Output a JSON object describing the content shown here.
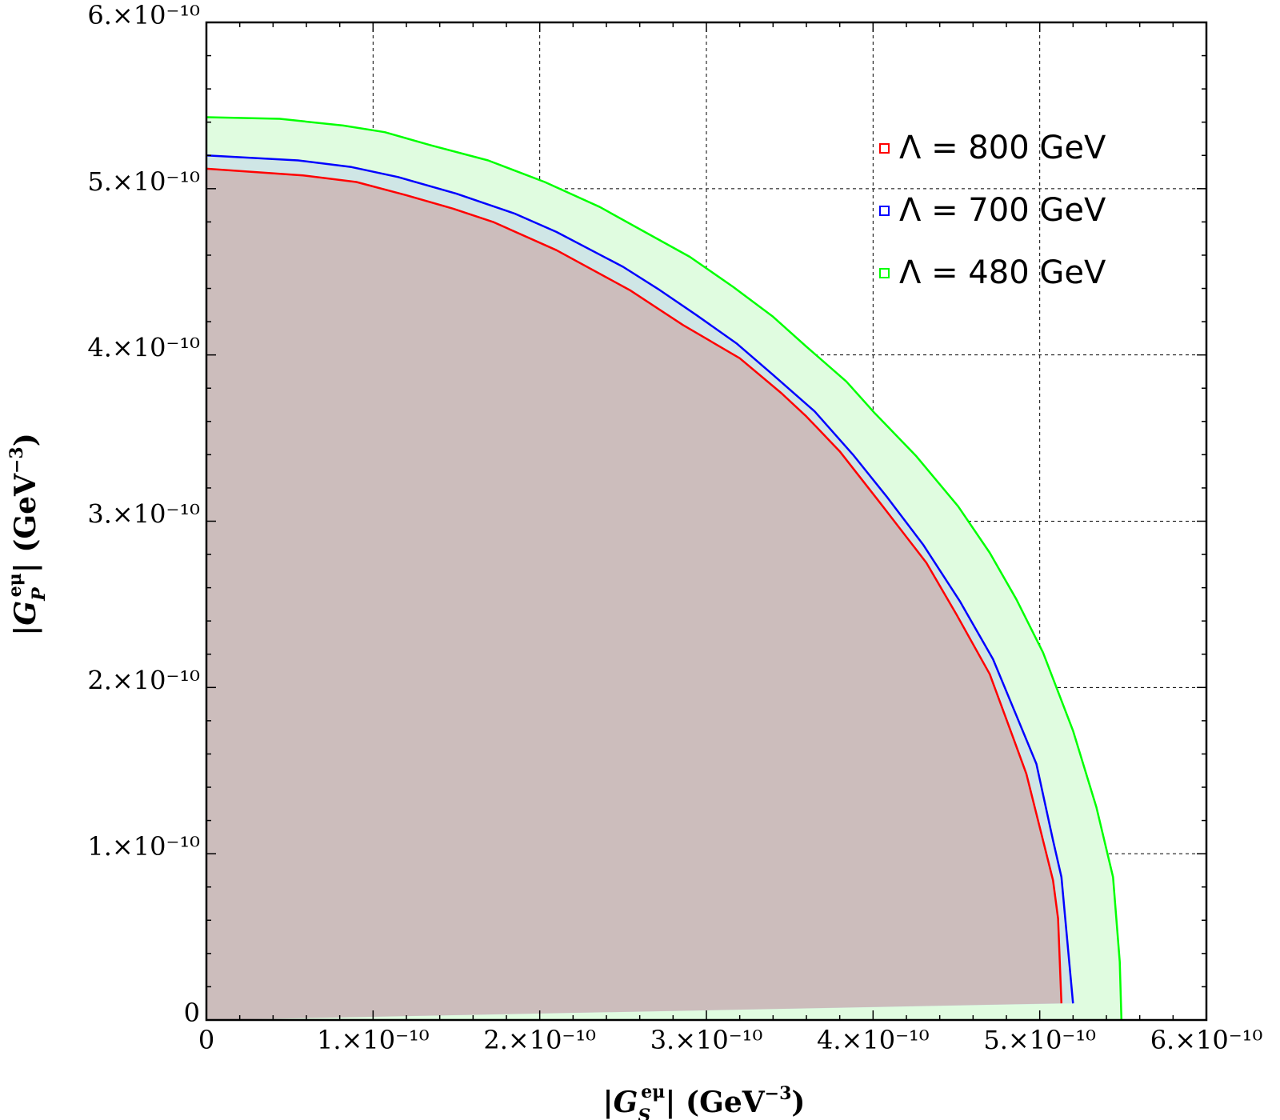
{
  "chart_data": {
    "type": "area",
    "title": "",
    "xlabel": "|G_S^{eμ}| (GeV^{-3})",
    "ylabel": "|G_P^{eμ}| (GeV^{-3})",
    "xlim": [
      0,
      6e-10
    ],
    "ylim": [
      0,
      6e-10
    ],
    "grid": true,
    "legend_position": "top-right",
    "x_ticks": [
      {
        "value": 0,
        "label": "0"
      },
      {
        "value": 1e-10,
        "label": "1.×10⁻¹⁰"
      },
      {
        "value": 2e-10,
        "label": "2.×10⁻¹⁰"
      },
      {
        "value": 3e-10,
        "label": "3.×10⁻¹⁰"
      },
      {
        "value": 4e-10,
        "label": "4.×10⁻¹⁰"
      },
      {
        "value": 5e-10,
        "label": "5.×10⁻¹⁰"
      },
      {
        "value": 6e-10,
        "label": "6.×10⁻¹⁰"
      }
    ],
    "y_ticks": [
      {
        "value": 0,
        "label": "0"
      },
      {
        "value": 1e-10,
        "label": "1.×10⁻¹⁰"
      },
      {
        "value": 2e-10,
        "label": "2.×10⁻¹⁰"
      },
      {
        "value": 3e-10,
        "label": "3.×10⁻¹⁰"
      },
      {
        "value": 4e-10,
        "label": "4.×10⁻¹⁰"
      },
      {
        "value": 5e-10,
        "label": "5.×10⁻¹⁰"
      },
      {
        "value": 6e-10,
        "label": "6.×10⁻¹⁰"
      }
    ],
    "series": [
      {
        "name": "Λ = 480 GeV",
        "color": "#00ff00",
        "fill": "#e0fce0",
        "x": [
          0,
          4.4e-11,
          8.2e-11,
          1.07e-10,
          1.35e-10,
          1.69e-10,
          2.03e-10,
          2.36e-10,
          2.63e-10,
          2.9e-10,
          3.16e-10,
          3.4e-10,
          3.6e-10,
          3.84e-10,
          4.01e-10,
          4.26e-10,
          4.51e-10,
          4.7e-10,
          4.86e-10,
          5.02e-10,
          5.2e-10,
          5.34e-10,
          5.44e-10,
          5.48e-10,
          5.49e-10
        ],
        "y": [
          5.43e-10,
          5.42e-10,
          5.38e-10,
          5.34e-10,
          5.26e-10,
          5.17e-10,
          5.04e-10,
          4.89e-10,
          4.74e-10,
          4.59e-10,
          4.41e-10,
          4.23e-10,
          4.05e-10,
          3.84e-10,
          3.65e-10,
          3.39e-10,
          3.09e-10,
          2.81e-10,
          2.53e-10,
          2.21e-10,
          1.74e-10,
          1.28e-10,
          8.6e-11,
          3.5e-11,
          0
        ]
      },
      {
        "name": "Λ = 700 GeV",
        "color": "#0000ff",
        "fill": "#cfe6e6",
        "x": [
          0,
          5.5e-11,
          8.7e-11,
          1.15e-10,
          1.5e-10,
          1.85e-10,
          2.1e-10,
          2.5e-10,
          2.72e-10,
          2.94e-10,
          3.18e-10,
          3.4e-10,
          3.65e-10,
          3.88e-10,
          4.08e-10,
          4.3e-10,
          4.52e-10,
          4.72e-10,
          4.84e-10,
          4.98e-10,
          5.08e-10,
          5.13e-10,
          5.2e-10
        ],
        "y": [
          5.2e-10,
          5.17e-10,
          5.13e-10,
          5.07e-10,
          4.97e-10,
          4.85e-10,
          4.74e-10,
          4.53e-10,
          4.39e-10,
          4.24e-10,
          4.07e-10,
          3.88e-10,
          3.66e-10,
          3.4e-10,
          3.15e-10,
          2.86e-10,
          2.52e-10,
          2.17e-10,
          1.88e-10,
          1.54e-10,
          1.08e-10,
          8.6e-11,
          1e-11
        ]
      },
      {
        "name": "Λ = 800 GeV",
        "color": "#ff0000",
        "fill": "#ccbdbc",
        "x": [
          0,
          5.8e-11,
          9e-11,
          1.2e-10,
          1.48e-10,
          1.72e-10,
          2.1e-10,
          2.54e-10,
          2.86e-10,
          3.2e-10,
          3.45e-10,
          3.6e-10,
          3.8e-10,
          4.05e-10,
          4.32e-10,
          4.5e-10,
          4.7e-10,
          4.84e-10,
          4.92e-10,
          5.02e-10,
          5.08e-10,
          5.11e-10,
          5.13e-10
        ],
        "y": [
          5.12e-10,
          5.08e-10,
          5.04e-10,
          4.96e-10,
          4.88e-10,
          4.8e-10,
          4.63e-10,
          4.39e-10,
          4.18e-10,
          3.98e-10,
          3.77e-10,
          3.63e-10,
          3.42e-10,
          3.1e-10,
          2.75e-10,
          2.44e-10,
          2.08e-10,
          1.7e-10,
          1.48e-10,
          1.08e-10,
          8.4e-11,
          6.1e-11,
          1e-11
        ]
      }
    ],
    "legend": [
      {
        "label": "Λ = 800 GeV",
        "color": "#ff0000"
      },
      {
        "label": "Λ = 700 GeV",
        "color": "#0000ff"
      },
      {
        "label": "Λ = 480 GeV",
        "color": "#00ff00"
      }
    ]
  }
}
